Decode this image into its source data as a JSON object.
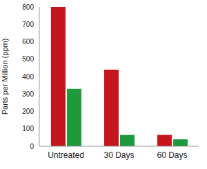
{
  "chart_data": {
    "type": "bar",
    "categories": [
      "Untreated",
      "30 Days",
      "60 Days"
    ],
    "y_label": "Parts per Million (ppm)",
    "series": [
      {
        "color": "#c4161c",
        "values": [
          800,
          440,
          65
        ]
      },
      {
        "color": "#1e9a3c",
        "values": [
          330,
          65,
          40
        ]
      }
    ],
    "ylim": [
      0,
      800
    ],
    "yticks": [
      0,
      100,
      200,
      300,
      400,
      500,
      600,
      700,
      800
    ],
    "grid": false
  }
}
